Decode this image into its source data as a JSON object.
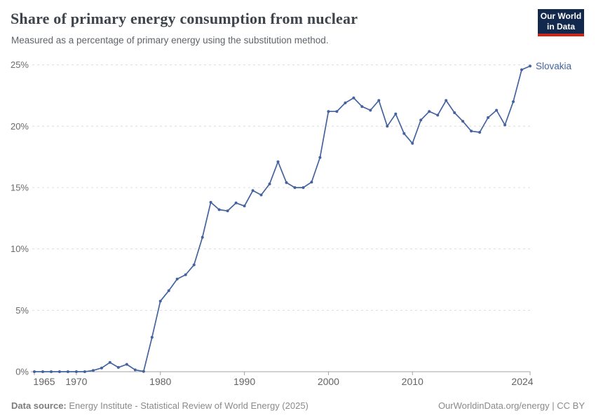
{
  "header": {
    "title": "Share of primary energy consumption from nuclear",
    "subtitle": "Measured as a percentage of primary energy using the substitution method.",
    "logo": {
      "line1": "Our World",
      "line2": "in Data",
      "bg_color": "#12294d",
      "accent_color": "#c6281c"
    }
  },
  "chart_data": {
    "type": "line",
    "title": "Share of primary energy consumption from nuclear",
    "series_name": "Slovakia",
    "line_color": "#44639e",
    "grid": "dashed",
    "legend_position": "end-of-line",
    "ylabel": "",
    "xlabel": "",
    "ylim": [
      0,
      25
    ],
    "yticks": [
      0,
      5,
      10,
      15,
      20,
      25
    ],
    "ytick_suffix": "%",
    "xticks": [
      1965,
      1970,
      1980,
      1990,
      2000,
      2010,
      2024
    ],
    "years": [
      1965,
      1966,
      1967,
      1968,
      1969,
      1970,
      1971,
      1972,
      1973,
      1974,
      1975,
      1976,
      1977,
      1978,
      1979,
      1980,
      1981,
      1982,
      1983,
      1984,
      1985,
      1986,
      1987,
      1988,
      1989,
      1990,
      1991,
      1992,
      1993,
      1994,
      1995,
      1996,
      1997,
      1998,
      1999,
      2000,
      2001,
      2002,
      2003,
      2004,
      2005,
      2006,
      2007,
      2008,
      2009,
      2010,
      2011,
      2012,
      2013,
      2014,
      2015,
      2016,
      2017,
      2018,
      2019,
      2020,
      2021,
      2022,
      2023,
      2024
    ],
    "values": [
      0,
      0,
      0,
      0,
      0,
      0,
      0,
      0.1,
      0.3,
      0.75,
      0.35,
      0.6,
      0.15,
      0.02,
      2.8,
      5.75,
      6.6,
      7.55,
      7.9,
      8.7,
      10.95,
      13.8,
      13.2,
      13.1,
      13.75,
      13.5,
      14.75,
      14.4,
      15.3,
      17.1,
      15.4,
      15.0,
      15.0,
      15.45,
      17.45,
      21.2,
      21.2,
      21.9,
      22.3,
      21.6,
      21.3,
      22.1,
      20.0,
      21.0,
      19.4,
      18.6,
      20.5,
      21.2,
      20.9,
      22.1,
      21.1,
      20.4,
      19.6,
      19.5,
      20.7,
      21.3,
      20.1,
      22.0,
      24.6,
      24.9
    ]
  },
  "footer": {
    "source_label": "Data source:",
    "source_text": " Energy Institute - Statistical Review of World Energy (2025)",
    "right_text": "OurWorldinData.org/energy | CC BY"
  }
}
